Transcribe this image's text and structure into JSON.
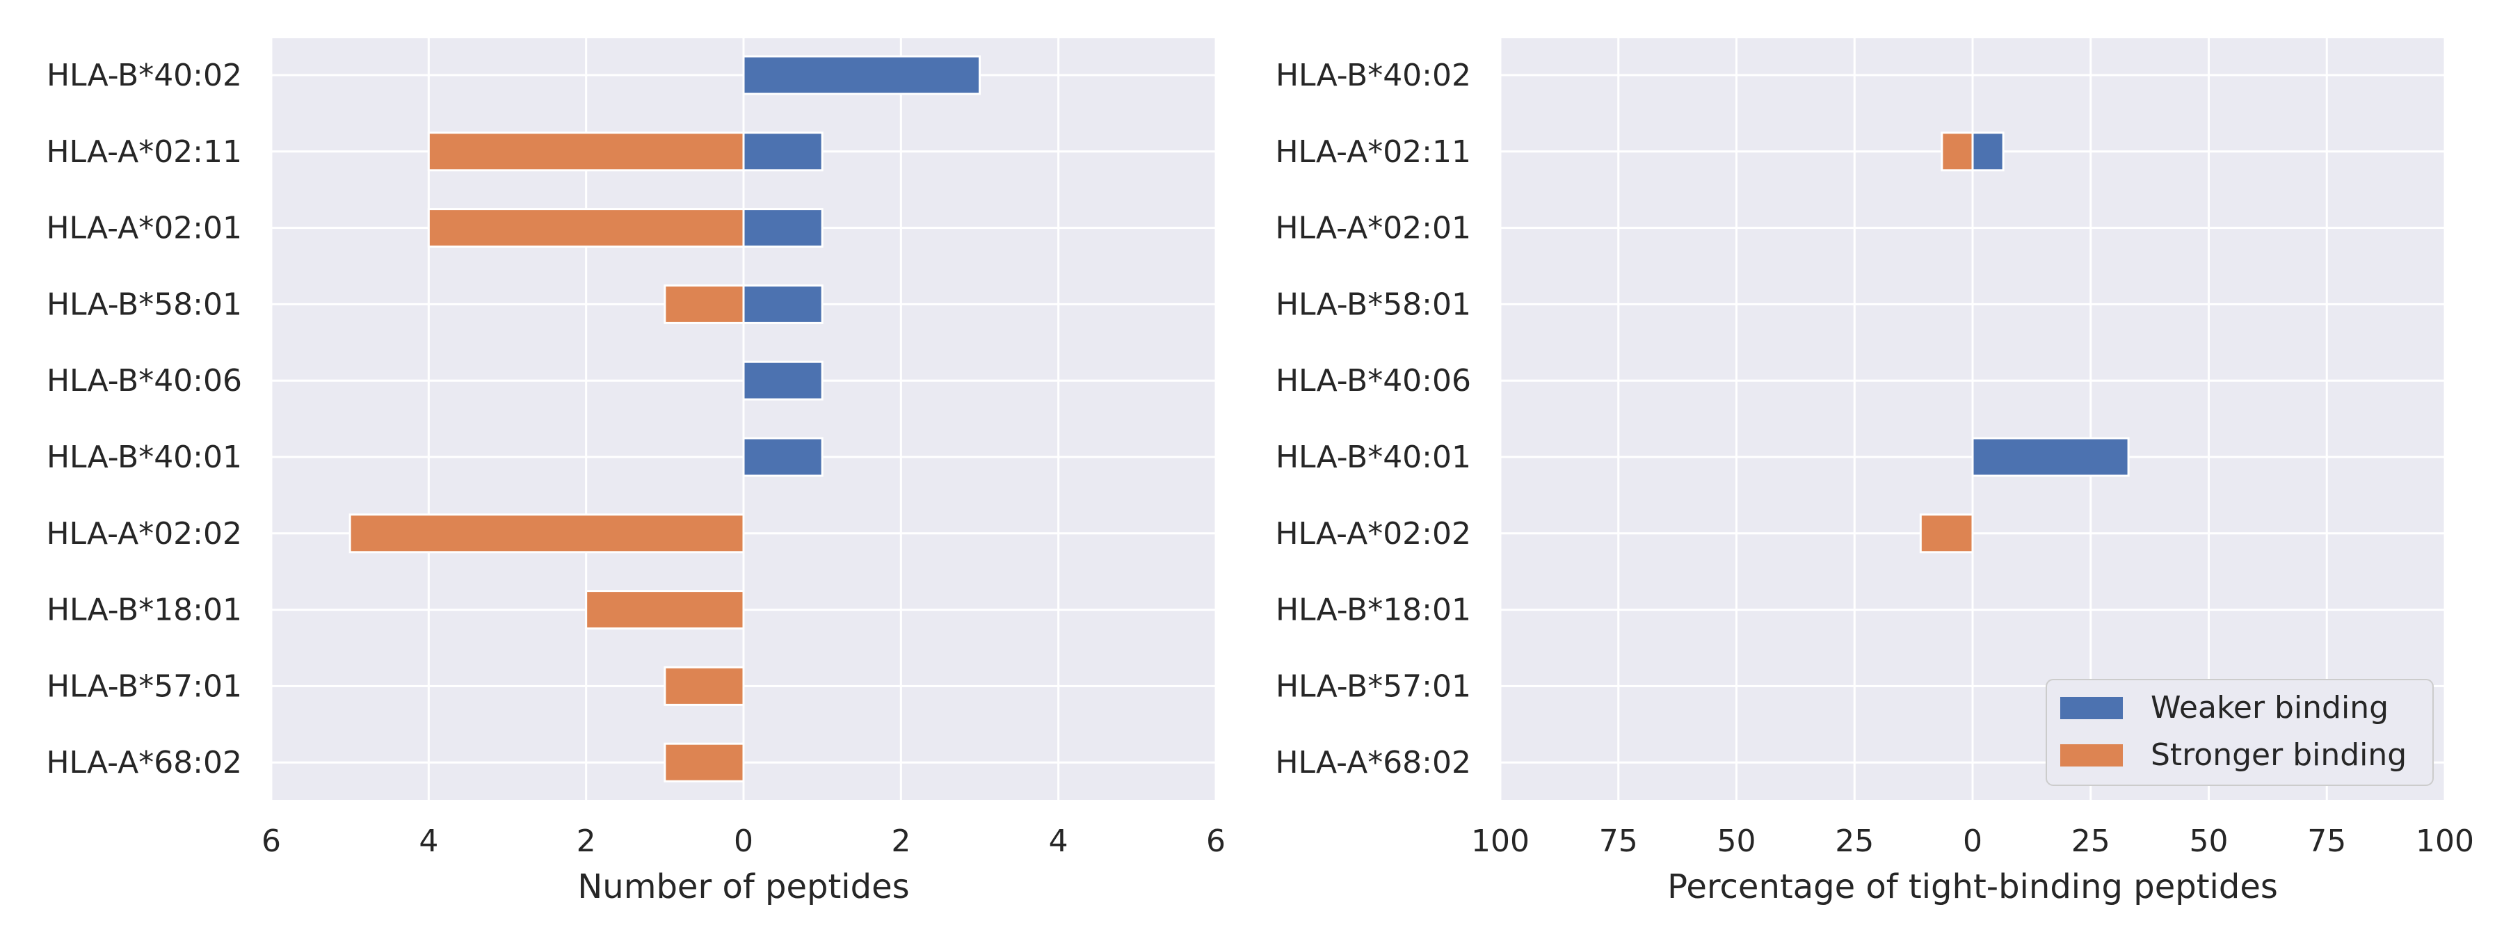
{
  "chart_data": [
    {
      "type": "bar",
      "orientation": "horizontal-diverging",
      "categories": [
        "HLA-B*40:02",
        "HLA-A*02:11",
        "HLA-A*02:01",
        "HLA-B*58:01",
        "HLA-B*40:06",
        "HLA-B*40:01",
        "HLA-A*02:02",
        "HLA-B*18:01",
        "HLA-B*57:01",
        "HLA-A*68:02"
      ],
      "series": [
        {
          "key": "weaker",
          "color": "#4c72b0",
          "values": [
            3,
            1,
            1,
            1,
            1,
            1,
            0,
            0,
            0,
            0
          ],
          "side": "right"
        },
        {
          "key": "stronger",
          "color": "#dd8452",
          "values": [
            0,
            4,
            4,
            1,
            0,
            0,
            5,
            2,
            1,
            1
          ],
          "side": "left"
        }
      ],
      "xlabel": "Number of peptides",
      "xlim": [
        -6,
        6
      ],
      "xticks": [
        -6,
        -4,
        -2,
        0,
        2,
        4,
        6
      ],
      "xtick_labels": [
        "6",
        "4",
        "2",
        "0",
        "2",
        "4",
        "6"
      ],
      "grid": true,
      "background": "#eaeaf2"
    },
    {
      "type": "bar",
      "orientation": "horizontal-diverging",
      "categories": [
        "HLA-B*40:02",
        "HLA-A*02:11",
        "HLA-A*02:01",
        "HLA-B*58:01",
        "HLA-B*40:06",
        "HLA-B*40:01",
        "HLA-A*02:02",
        "HLA-B*18:01",
        "HLA-B*57:01",
        "HLA-A*68:02"
      ],
      "series": [
        {
          "key": "weaker",
          "name": "Weaker binding",
          "color": "#4c72b0",
          "values": [
            0,
            6.5,
            0,
            0,
            0,
            33,
            0,
            0,
            0,
            0
          ],
          "side": "right"
        },
        {
          "key": "stronger",
          "name": "Stronger binding",
          "color": "#dd8452",
          "values": [
            0,
            6.5,
            0,
            0,
            0,
            0,
            11,
            0,
            0,
            0
          ],
          "side": "left"
        }
      ],
      "xlabel": "Percentage of tight-binding peptides",
      "xlim": [
        -100,
        100
      ],
      "xticks": [
        -100,
        -75,
        -50,
        -25,
        0,
        25,
        50,
        75,
        100
      ],
      "xtick_labels": [
        "100",
        "75",
        "50",
        "25",
        "0",
        "25",
        "50",
        "75",
        "100"
      ],
      "grid": true,
      "background": "#eaeaf2",
      "legend": {
        "placement": "lower-right",
        "entries": [
          "Weaker binding",
          "Stronger binding"
        ]
      }
    }
  ]
}
